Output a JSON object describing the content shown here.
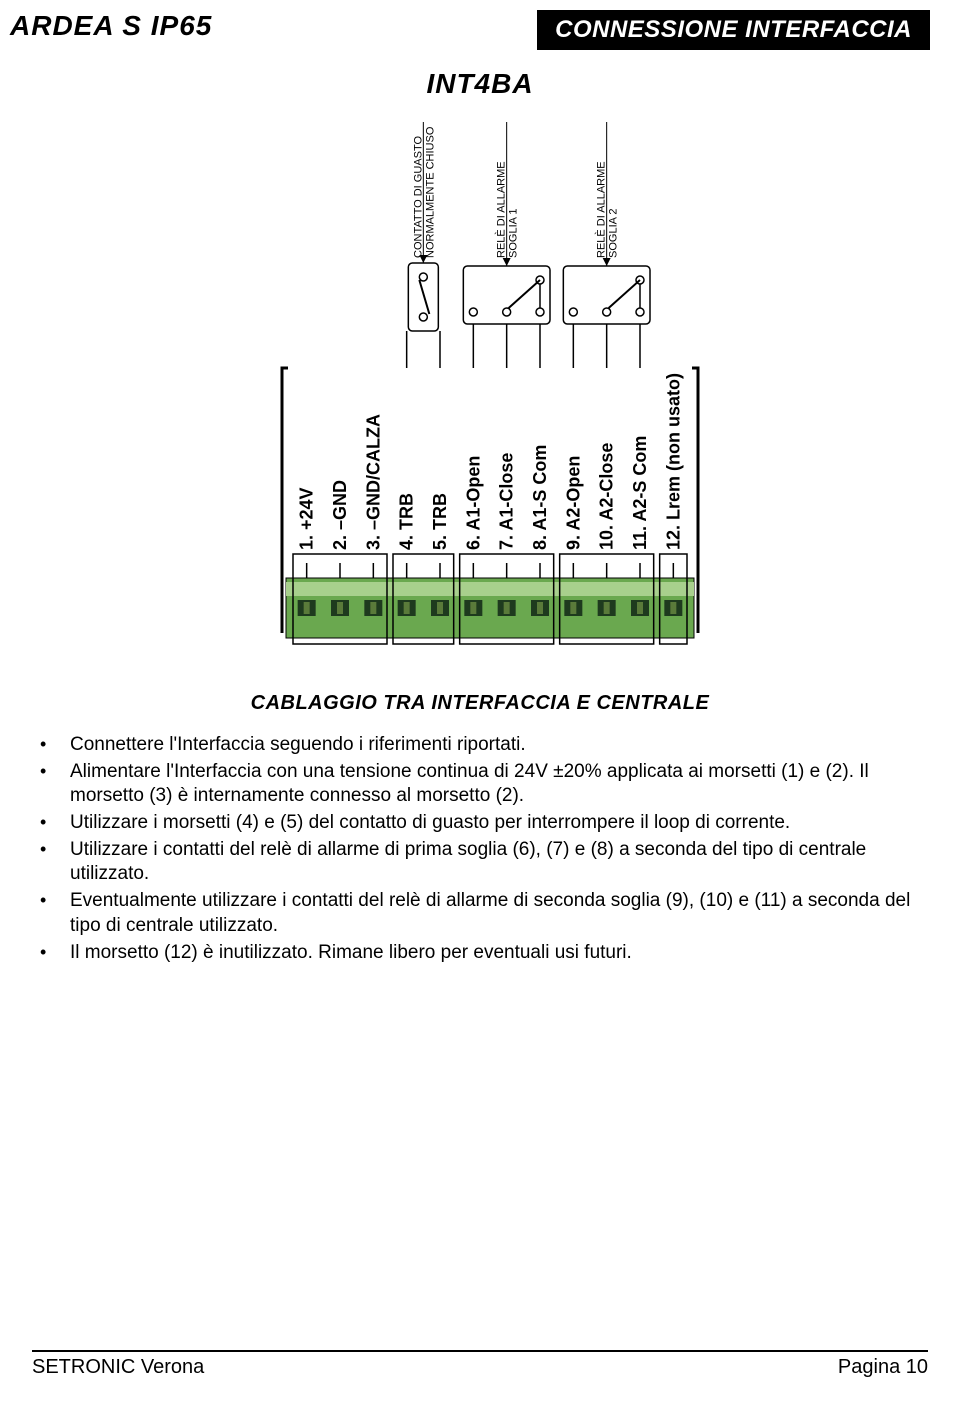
{
  "header": {
    "left": "ARDEA S IP65",
    "right": "CONNESSIONE INTERFACCIA"
  },
  "diagram": {
    "title": "INT4BA",
    "top_labels": {
      "fault": {
        "line1": "CONTATTO DI GUASTO",
        "line2": "NORMALMENTE CHIUSO"
      },
      "alarm1": {
        "line1": "RELÈ DI ALLARME",
        "line2": "SOGLIA 1"
      },
      "alarm2": {
        "line1": "RELÈ DI ALLARME",
        "line2": "SOGLIA 2"
      }
    },
    "pins": [
      {
        "n": "1.",
        "label": "+24V"
      },
      {
        "n": "2.",
        "label": "–GND"
      },
      {
        "n": "3.",
        "label": "–GND/CALZA"
      },
      {
        "n": "4.",
        "label": "TRB"
      },
      {
        "n": "5.",
        "label": "TRB"
      },
      {
        "n": "6.",
        "label": "A1-Open"
      },
      {
        "n": "7.",
        "label": "A1-Close"
      },
      {
        "n": "8.",
        "label": "A1-S Com"
      },
      {
        "n": "9.",
        "label": "A2-Open"
      },
      {
        "n": "10.",
        "label": "A2-Close"
      },
      {
        "n": "11.",
        "label": "A2-S Com"
      },
      {
        "n": "12.",
        "label": "Lrem (non usato)"
      }
    ],
    "colors": {
      "stroke": "#000000",
      "terminal_green": "#6aa84f",
      "terminal_dark": "#1e3a1e",
      "terminal_highlight": "#a8d08d",
      "relay_fill": "#ffffff"
    }
  },
  "subtitle": "CABLAGGIO TRA INTERFACCIA E CENTRALE",
  "bullets": [
    "Connettere l'Interfaccia seguendo i riferimenti riportati.",
    "Alimentare l'Interfaccia con una tensione continua di 24V ±20% applicata ai morsetti (1) e (2). Il morsetto (3) è internamente connesso al morsetto (2).",
    "Utilizzare i morsetti (4) e (5) del contatto di guasto per interrompere il loop di corrente.",
    "Utilizzare i contatti del relè di allarme di prima soglia (6), (7) e (8) a seconda del tipo di centrale utilizzato.",
    "Eventualmente utilizzare i contatti del relè di allarme di seconda soglia (9), (10) e (11) a seconda del tipo di centrale utilizzato.",
    "Il morsetto (12) è inutilizzato. Rimane libero per eventuali usi futuri."
  ],
  "footer": {
    "left": "SETRONIC Verona",
    "right": "Pagina 10"
  }
}
